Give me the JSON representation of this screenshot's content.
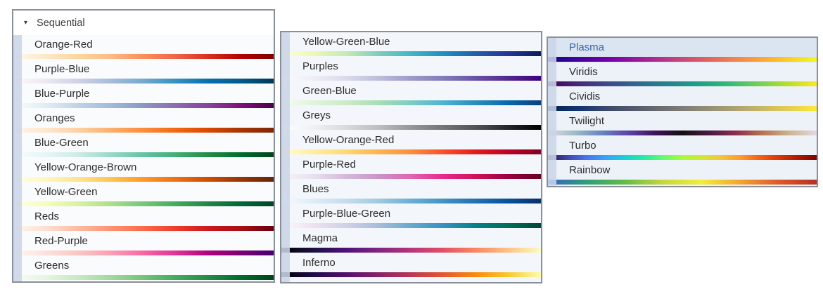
{
  "header": {
    "label": "Sequential",
    "collapse_icon": "▾"
  },
  "colors": {
    "panel_border": "#8b8f99",
    "gutter": "rgba(202,213,231,0.88)",
    "label_text": "#2d2d2d",
    "selected_bg": "#dbe5f2",
    "selected_text": "#38629f",
    "row_bg_1": "#fafbfd",
    "row_bg_2": "#f3f6fa",
    "row_bg_3": "#edf2f8"
  },
  "panels": [
    {
      "name": "sequential-column-1",
      "items": [
        {
          "label": "Orange-Red",
          "gradient": [
            "#fff7ec",
            "#fee8c8",
            "#fdd49e",
            "#fdbb84",
            "#fc8d59",
            "#ef6548",
            "#d7301f",
            "#b30000",
            "#7f0000"
          ]
        },
        {
          "label": "Purple-Blue",
          "gradient": [
            "#fff7fb",
            "#ece7f2",
            "#d0d1e6",
            "#a6bddb",
            "#74a9cf",
            "#3690c0",
            "#0570b0",
            "#045a8d",
            "#023858"
          ]
        },
        {
          "label": "Blue-Purple",
          "gradient": [
            "#f7fcfd",
            "#e0ecf4",
            "#bfd3e6",
            "#9ebcda",
            "#8c96c6",
            "#8c6bb1",
            "#88419d",
            "#810f7c",
            "#4d004b"
          ]
        },
        {
          "label": "Oranges",
          "gradient": [
            "#fff5eb",
            "#fee6ce",
            "#fdd0a2",
            "#fdae6b",
            "#fd8d3c",
            "#f16913",
            "#d94801",
            "#a63603",
            "#7f2704"
          ]
        },
        {
          "label": "Blue-Green",
          "gradient": [
            "#f7fcfd",
            "#e5f5f9",
            "#ccece6",
            "#99d8c9",
            "#66c2a4",
            "#41ae76",
            "#238b45",
            "#006d2c",
            "#00441b"
          ]
        },
        {
          "label": "Yellow-Orange-Brown",
          "gradient": [
            "#ffffe5",
            "#fff7bc",
            "#fee391",
            "#fec44f",
            "#fe9929",
            "#ec7014",
            "#cc4c02",
            "#993404",
            "#662506"
          ]
        },
        {
          "label": "Yellow-Green",
          "gradient": [
            "#ffffe5",
            "#f7fcb9",
            "#d9f0a3",
            "#addd8e",
            "#78c679",
            "#41ab5d",
            "#238443",
            "#006837",
            "#004529"
          ]
        },
        {
          "label": "Reds",
          "gradient": [
            "#fff5f0",
            "#fee0d2",
            "#fcbba1",
            "#fc9272",
            "#fb6a4a",
            "#ef3b2c",
            "#cb181d",
            "#a50f15",
            "#67000d"
          ]
        },
        {
          "label": "Red-Purple",
          "gradient": [
            "#fff7f3",
            "#fde0dd",
            "#fcc5c0",
            "#fa9fb5",
            "#f768a1",
            "#dd3497",
            "#ae017e",
            "#7a0177",
            "#49006a"
          ]
        },
        {
          "label": "Greens",
          "gradient": [
            "#f7fcf5",
            "#e5f5e0",
            "#c7e9c0",
            "#a1d99b",
            "#74c476",
            "#41ab5d",
            "#238b45",
            "#006d2c",
            "#00441b"
          ]
        }
      ]
    },
    {
      "name": "sequential-column-2",
      "items": [
        {
          "label": "Yellow-Green-Blue",
          "gradient": [
            "#ffffd9",
            "#edf8b1",
            "#c7e9b4",
            "#7fcdbb",
            "#41b6c4",
            "#1d91c0",
            "#225ea8",
            "#253494",
            "#081d58"
          ]
        },
        {
          "label": "Purples",
          "gradient": [
            "#fcfbfd",
            "#efedf5",
            "#dadaeb",
            "#bcbddc",
            "#9e9ac8",
            "#807dba",
            "#6a51a3",
            "#54278f",
            "#3f007d"
          ]
        },
        {
          "label": "Green-Blue",
          "gradient": [
            "#f7fcf0",
            "#e0f3db",
            "#ccebc5",
            "#a8ddb5",
            "#7bccc4",
            "#4eb3d3",
            "#2b8cbe",
            "#0868ac",
            "#084081"
          ]
        },
        {
          "label": "Greys",
          "gradient": [
            "#ffffff",
            "#f0f0f0",
            "#d9d9d9",
            "#bdbdbd",
            "#969696",
            "#737373",
            "#525252",
            "#252525",
            "#000000"
          ]
        },
        {
          "label": "Yellow-Orange-Red",
          "gradient": [
            "#ffffcc",
            "#ffeda0",
            "#fed976",
            "#feb24c",
            "#fd8d3c",
            "#fc4e2a",
            "#e31a1c",
            "#bd0026",
            "#800026"
          ]
        },
        {
          "label": "Purple-Red",
          "gradient": [
            "#f7f4f9",
            "#e7e1ef",
            "#d4b9da",
            "#c994c7",
            "#df65b0",
            "#e7298a",
            "#ce1256",
            "#980043",
            "#67001f"
          ]
        },
        {
          "label": "Blues",
          "gradient": [
            "#f7fbff",
            "#deebf7",
            "#c6dbef",
            "#9ecae1",
            "#6baed6",
            "#4292c6",
            "#2171b5",
            "#08519c",
            "#08306b"
          ]
        },
        {
          "label": "Purple-Blue-Green",
          "gradient": [
            "#fff7fb",
            "#ece2f0",
            "#d0d1e6",
            "#a6bddb",
            "#67a9cf",
            "#3690c0",
            "#02818a",
            "#016c59",
            "#014636"
          ]
        },
        {
          "label": "Magma",
          "gradient": [
            "#000004",
            "#1c1044",
            "#4f127b",
            "#812581",
            "#b5367a",
            "#e55064",
            "#fb8761",
            "#fec287",
            "#fcfdbf"
          ]
        },
        {
          "label": "Inferno",
          "gradient": [
            "#000004",
            "#1f0c48",
            "#550f6d",
            "#88226a",
            "#ba3655",
            "#e35933",
            "#f98c0a",
            "#f9c932",
            "#fcffa4"
          ]
        }
      ]
    },
    {
      "name": "colormap-column-3",
      "items": [
        {
          "label": "Plasma",
          "selected": true,
          "gradient": [
            "#0d0887",
            "#46039f",
            "#7201a8",
            "#9c179e",
            "#bd3786",
            "#d8576b",
            "#ed7953",
            "#fb9f3a",
            "#fdca26",
            "#f0f921"
          ]
        },
        {
          "label": "Viridis",
          "gradient": [
            "#440154",
            "#482878",
            "#3e4989",
            "#31688e",
            "#26828e",
            "#1f9e89",
            "#35b779",
            "#6ece58",
            "#b5de2b",
            "#fde725"
          ]
        },
        {
          "label": "Cividis",
          "gradient": [
            "#00224e",
            "#123570",
            "#3b496c",
            "#575d6d",
            "#707173",
            "#8a8678",
            "#a59c74",
            "#c3b369",
            "#e1cc55",
            "#fee838"
          ]
        },
        {
          "label": "Twilight",
          "gradient": [
            "#e2d9e2",
            "#9ebbc9",
            "#6785be",
            "#5e43a5",
            "#421258",
            "#141013",
            "#4a1942",
            "#8e2c50",
            "#b67451",
            "#d0b490",
            "#e2d9e2"
          ]
        },
        {
          "label": "Turbo",
          "gradient": [
            "#30123b",
            "#4145ab",
            "#4675ed",
            "#39a2fc",
            "#1bcfd4",
            "#24eca6",
            "#61fc6c",
            "#a4fc3b",
            "#d1e834",
            "#f3c63a",
            "#fe9b2d",
            "#f36315",
            "#d93806",
            "#b11901",
            "#7a0402"
          ]
        },
        {
          "label": "Rainbow",
          "gradient": [
            "#3a5fcd",
            "#2e9e77",
            "#63bc46",
            "#c6d63c",
            "#f2ee3a",
            "#f4a52e",
            "#e2572a",
            "#b53224"
          ]
        }
      ]
    }
  ]
}
